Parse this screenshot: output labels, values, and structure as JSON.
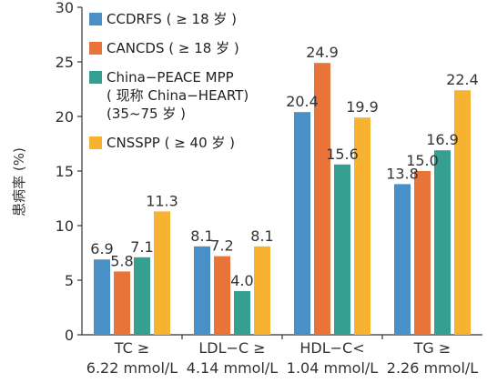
{
  "chart_data": {
    "type": "bar",
    "title": "",
    "xlabel": "",
    "ylabel": "患病率 (%)",
    "ylim": [
      0,
      30
    ],
    "yticks": [
      0,
      5,
      10,
      15,
      20,
      25,
      30
    ],
    "grid": false,
    "legend_position": "top-left",
    "categories": [
      {
        "line1": "TC ≥",
        "line2": "6.22 mmol/L"
      },
      {
        "line1": "LDL−C ≥",
        "line2": "4.14 mmol/L"
      },
      {
        "line1": "HDL−C<",
        "line2": "1.04 mmol/L"
      },
      {
        "line1": "TG ≥",
        "line2": "2.26 mmol/L"
      }
    ],
    "series": [
      {
        "name": "CCDRFS ( ≥ 18 岁 )",
        "legend_lines": [
          "CCDRFS ( ≥ 18 岁 )"
        ],
        "color": "#4a90c8",
        "values": [
          6.9,
          8.1,
          20.4,
          13.8
        ],
        "labels": [
          "6.9",
          "8.1",
          "20.4",
          "13.8"
        ]
      },
      {
        "name": "CANCDS ( ≥ 18 岁 )",
        "legend_lines": [
          "CANCDS ( ≥ 18 岁 )"
        ],
        "color": "#e8743a",
        "values": [
          5.8,
          7.2,
          24.9,
          15.0
        ],
        "labels": [
          "5.8",
          "7.2",
          "24.9",
          "15.0"
        ]
      },
      {
        "name": "China−PEACE MPP ( 现称 China−HEART) (35~75 岁 )",
        "legend_lines": [
          "China−PEACE MPP",
          "( 现称 China−HEART)",
          "(35~75 岁 )"
        ],
        "color": "#36a090",
        "values": [
          7.1,
          4.0,
          15.6,
          16.9
        ],
        "labels": [
          "7.1",
          "4.0",
          "15.6",
          "16.9"
        ]
      },
      {
        "name": "CNSSPP ( ≥ 40 岁 )",
        "legend_lines": [
          "CNSSPP ( ≥ 40 岁 )"
        ],
        "color": "#f6b230",
        "values": [
          11.3,
          8.1,
          19.9,
          22.4
        ],
        "labels": [
          "11.3",
          "8.1",
          "19.9",
          "22.4"
        ]
      }
    ]
  }
}
